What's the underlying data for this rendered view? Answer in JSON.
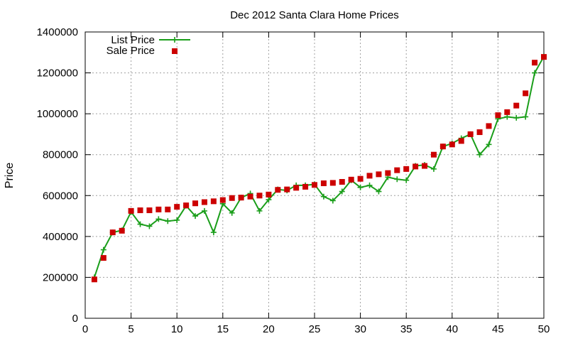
{
  "chart_data": {
    "type": "line",
    "title": "Dec 2012 Santa Clara Home Prices",
    "xlabel": "",
    "ylabel": "Price",
    "xlim": [
      0,
      50
    ],
    "ylim": [
      0,
      1400000
    ],
    "xticks": [
      0,
      5,
      10,
      15,
      20,
      25,
      30,
      35,
      40,
      45,
      50
    ],
    "yticks": [
      0,
      200000,
      400000,
      600000,
      800000,
      1000000,
      1200000,
      1400000
    ],
    "grid": true,
    "legend_position": "top-left",
    "x": [
      1,
      2,
      3,
      4,
      5,
      6,
      7,
      8,
      9,
      10,
      11,
      12,
      13,
      14,
      15,
      16,
      17,
      18,
      19,
      20,
      21,
      22,
      23,
      24,
      25,
      26,
      27,
      28,
      29,
      30,
      31,
      32,
      33,
      34,
      35,
      36,
      37,
      38,
      39,
      40,
      41,
      42,
      43,
      44,
      45,
      46,
      47,
      48,
      49,
      50
    ],
    "series": [
      {
        "name": "List Price",
        "style": "line+plus",
        "color": "#1a9e1a",
        "values": [
          200000,
          335000,
          420000,
          430000,
          520000,
          460000,
          450000,
          485000,
          475000,
          480000,
          550000,
          500000,
          525000,
          420000,
          560000,
          515000,
          590000,
          610000,
          525000,
          580000,
          630000,
          625000,
          650000,
          650000,
          655000,
          595000,
          575000,
          620000,
          675000,
          640000,
          650000,
          620000,
          690000,
          680000,
          675000,
          745000,
          750000,
          730000,
          840000,
          855000,
          880000,
          900000,
          800000,
          850000,
          975000,
          985000,
          980000,
          985000,
          1200000,
          1280000
        ]
      },
      {
        "name": "Sale Price",
        "style": "square",
        "color": "#cc0000",
        "values": [
          190000,
          295000,
          420000,
          428000,
          525000,
          528000,
          528000,
          532000,
          532000,
          545000,
          552000,
          562000,
          568000,
          572000,
          578000,
          588000,
          590000,
          595000,
          600000,
          605000,
          628000,
          630000,
          638000,
          643000,
          652000,
          660000,
          662000,
          667000,
          678000,
          682000,
          697000,
          704000,
          710000,
          724000,
          730000,
          742000,
          745000,
          800000,
          840000,
          850000,
          867000,
          900000,
          910000,
          940000,
          993000,
          1008000,
          1040000,
          1100000,
          1250000,
          1278000
        ]
      }
    ]
  }
}
